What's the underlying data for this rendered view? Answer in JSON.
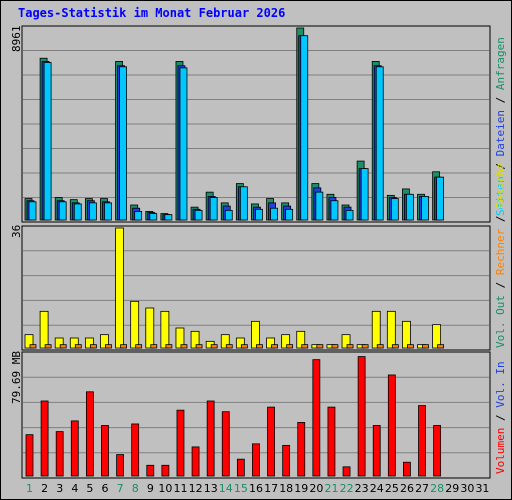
{
  "chart_data": {
    "type": "bar",
    "title": "Tages-Statistik im Monat Februar 2026",
    "x": [
      "1",
      "2",
      "3",
      "4",
      "5",
      "6",
      "7",
      "8",
      "9",
      "10",
      "11",
      "12",
      "13",
      "14",
      "15",
      "16",
      "17",
      "18",
      "19",
      "20",
      "21",
      "22",
      "23",
      "24",
      "25",
      "26",
      "27",
      "28",
      "29",
      "30",
      "31"
    ],
    "weekend_days": [
      "1",
      "7",
      "8",
      "14",
      "15",
      "21",
      "22",
      "28"
    ],
    "panels": [
      {
        "ytick": "8961",
        "ymax": 8961,
        "legend": [
          "Anfragen",
          "Dateien",
          "Seiten"
        ],
        "separator": "/",
        "series": [
          {
            "name": "Anfragen",
            "color": "#1a8f68",
            "values": [
              1000,
              7550,
              1050,
              950,
              1000,
              1000,
              7400,
              700,
              400,
              300,
              7400,
              600,
              1300,
              800,
              1700,
              750,
              1000,
              800,
              8961,
              1700,
              1200,
              700,
              2750,
              7400,
              1150,
              1450,
              1200,
              2250,
              0,
              0,
              0
            ]
          },
          {
            "name": "Dateien",
            "color": "#2040e0",
            "values": [
              900,
              7400,
              900,
              800,
              900,
              850,
              7200,
              550,
              350,
              250,
              7200,
              500,
              1100,
              650,
              1550,
              600,
              800,
              650,
              8600,
              1500,
              1050,
              600,
              2400,
              7200,
              1050,
              1200,
              1100,
              2000,
              0,
              0,
              0
            ]
          },
          {
            "name": "Seiten",
            "color": "#00c8ff",
            "values": [
              850,
              7350,
              850,
              750,
              800,
              800,
              7150,
              400,
              300,
              250,
              7100,
              450,
              1050,
              450,
              1550,
              500,
              550,
              500,
              8600,
              1300,
              900,
              450,
              2400,
              7150,
              1000,
              1200,
              1100,
              2000,
              0,
              0,
              0
            ]
          }
        ]
      },
      {
        "ytick": "36",
        "ymax": 36,
        "legend": [
          "Besuche",
          "Rechner",
          "Vol. Out"
        ],
        "separator": "/",
        "series": [
          {
            "name": "Besuche",
            "color": "#ffff00",
            "values": [
              4,
              11,
              3,
              3,
              3,
              4,
              36,
              14,
              12,
              11,
              6,
              5,
              2,
              4,
              3,
              8,
              3,
              4,
              5,
              1,
              1,
              4,
              1,
              11,
              11,
              8,
              1,
              7,
              0,
              0,
              0
            ]
          },
          {
            "name": "Rechner",
            "color": "#ff8000",
            "values": [
              1,
              1,
              1,
              1,
              1,
              1,
              1,
              1,
              1,
              1,
              1,
              1,
              1,
              1,
              1,
              1,
              1,
              1,
              1,
              1,
              1,
              1,
              1,
              1,
              1,
              1,
              1,
              1,
              0,
              0,
              0
            ]
          }
        ]
      },
      {
        "ytick": "79.69 MB",
        "ymax": 79.69,
        "legend": [
          "Volumen",
          "Vol. In"
        ],
        "separator": "/",
        "series": [
          {
            "name": "Volumen",
            "color": "#ff0000",
            "values": [
              27,
              49,
              29,
              36,
              55,
              33,
              14,
              34,
              7,
              7,
              43,
              19,
              49,
              42,
              11,
              21,
              45,
              20,
              35,
              76,
              45,
              6,
              78,
              33,
              66,
              9,
              46,
              33,
              0,
              0,
              0
            ]
          }
        ]
      }
    ]
  }
}
